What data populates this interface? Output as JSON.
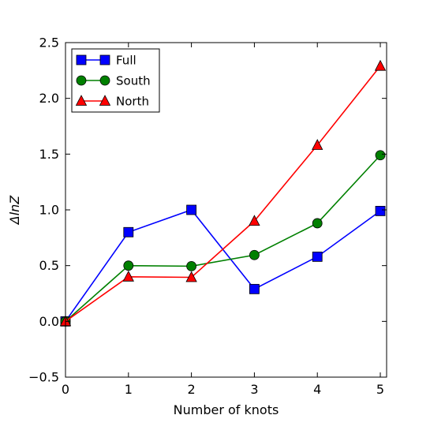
{
  "chart_data": {
    "type": "line",
    "title": "",
    "xlabel": "Number of knots",
    "ylabel": "ΔlnZ",
    "xlim": [
      0,
      5.1
    ],
    "ylim": [
      -0.5,
      2.5
    ],
    "xticks": [
      0,
      1,
      2,
      3,
      4,
      5
    ],
    "yticks": [
      -0.5,
      0.0,
      0.5,
      1.0,
      1.5,
      2.0,
      2.5
    ],
    "xtick_labels": [
      "0",
      "1",
      "2",
      "3",
      "4",
      "5"
    ],
    "ytick_labels": [
      "−0.5",
      "0.0",
      "0.5",
      "1.0",
      "1.5",
      "2.0",
      "2.5"
    ],
    "grid": false,
    "legend_position": "top-left",
    "series": [
      {
        "name": "Full",
        "color": "#0000ff",
        "marker": "square",
        "x": [
          0,
          1,
          2,
          3,
          4,
          5
        ],
        "y": [
          0.0,
          0.8,
          1.0,
          0.29,
          0.58,
          0.99
        ]
      },
      {
        "name": "South",
        "color": "#008000",
        "marker": "circle",
        "x": [
          0,
          1,
          2,
          3,
          4,
          5
        ],
        "y": [
          0.0,
          0.5,
          0.495,
          0.595,
          0.88,
          1.49
        ]
      },
      {
        "name": "North",
        "color": "#ff0000",
        "marker": "triangle",
        "x": [
          0,
          1,
          2,
          3,
          4,
          5
        ],
        "y": [
          0.0,
          0.4,
          0.395,
          0.9,
          1.58,
          2.29
        ]
      }
    ]
  }
}
